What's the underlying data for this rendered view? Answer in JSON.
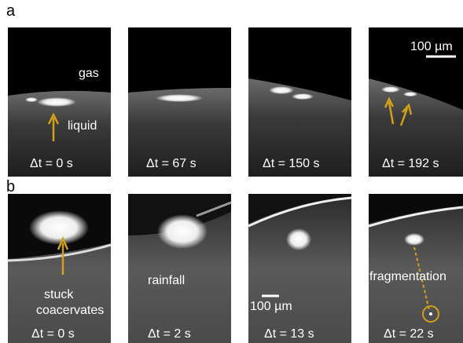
{
  "panels": [
    {
      "label": "a",
      "frames": [
        {
          "time": "Δt = 0 s",
          "annotations": [
            "gas",
            "liquid"
          ]
        },
        {
          "time": "Δt = 67 s"
        },
        {
          "time": "Δt = 150 s"
        },
        {
          "time": "Δt = 192 s",
          "scale_bar": "100 µm"
        }
      ]
    },
    {
      "label": "b",
      "frames": [
        {
          "time": "Δt = 0 s",
          "annotations": [
            "stuck",
            "coacervates"
          ]
        },
        {
          "time": "Δt = 2 s",
          "annotations": [
            "rainfall"
          ]
        },
        {
          "time": "Δt = 13 s",
          "scale_bar": "100 µm"
        },
        {
          "time": "Δt = 22 s",
          "annotations": [
            "fragmentation"
          ]
        }
      ]
    }
  ]
}
